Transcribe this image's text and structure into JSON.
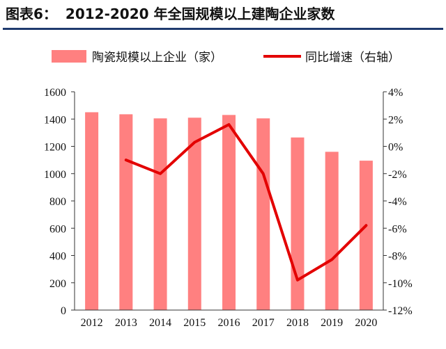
{
  "figure": {
    "label": "图表6：",
    "title": "2012-2020 年全国规模以上建陶企业家数"
  },
  "colors": {
    "bar": "#ff8080",
    "line": "#e30000",
    "axis": "#333333",
    "rule": "#1f3a6e"
  },
  "chart_data": {
    "type": "bar",
    "categories": [
      "2012",
      "2013",
      "2014",
      "2015",
      "2016",
      "2017",
      "2018",
      "2019",
      "2020"
    ],
    "series": [
      {
        "name": "陶瓷规模以上企业（家）",
        "type": "bar",
        "axis": "left",
        "values": [
          1450,
          1435,
          1405,
          1410,
          1430,
          1405,
          1265,
          1160,
          1095
        ]
      },
      {
        "name": "同比增速（右轴）",
        "type": "line",
        "axis": "right",
        "values": [
          null,
          -1.0,
          -2.0,
          0.3,
          1.6,
          -2.0,
          -9.8,
          -8.3,
          -5.8
        ]
      }
    ],
    "ylim": [
      0,
      1600
    ],
    "y2lim": [
      -12,
      4
    ],
    "yticks": [
      "0",
      "200",
      "400",
      "600",
      "800",
      "1000",
      "1200",
      "1400",
      "1600"
    ],
    "y2ticks": [
      "-12%",
      "-10%",
      "-8%",
      "-6%",
      "-4%",
      "-2%",
      "0%",
      "2%",
      "4%"
    ],
    "legend": "top",
    "grid": false
  }
}
